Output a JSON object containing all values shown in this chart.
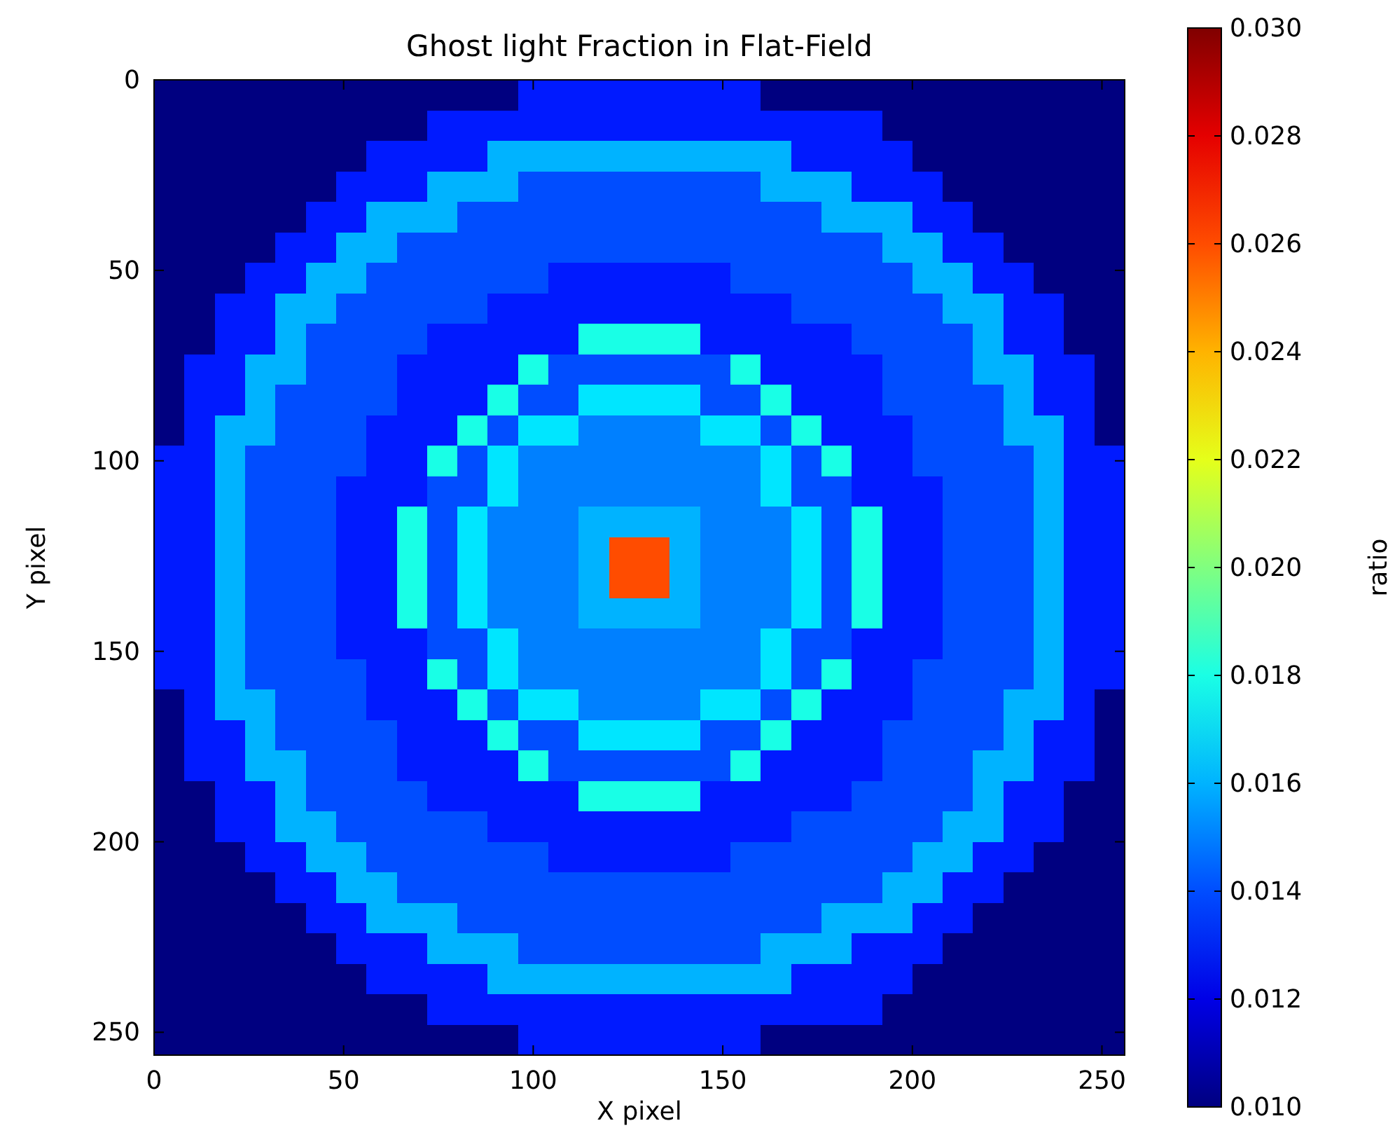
{
  "chart_data": {
    "type": "heatmap",
    "title": "Ghost light Fraction in Flat-Field",
    "xlabel": "X pixel",
    "ylabel": "Y pixel",
    "clabel": "ratio",
    "xlim": [
      0,
      256
    ],
    "ylim": [
      256,
      0
    ],
    "xticks": [
      0,
      50,
      100,
      150,
      200,
      250
    ],
    "yticks": [
      0,
      50,
      100,
      150,
      200,
      250
    ],
    "clim": [
      0.01,
      0.03
    ],
    "cticks": [
      {
        "value": 0.01,
        "label": "0.010"
      },
      {
        "value": 0.012,
        "label": "0.012"
      },
      {
        "value": 0.014,
        "label": "0.014"
      },
      {
        "value": 0.016,
        "label": "0.016"
      },
      {
        "value": 0.018,
        "label": "0.018"
      },
      {
        "value": 0.02,
        "label": "0.020"
      },
      {
        "value": 0.022,
        "label": "0.022"
      },
      {
        "value": 0.024,
        "label": "0.024"
      },
      {
        "value": 0.026,
        "label": "0.026"
      },
      {
        "value": 0.028,
        "label": "0.028"
      },
      {
        "value": 0.03,
        "label": "0.030"
      }
    ],
    "cells": [
      [
        0.01,
        0.01,
        0.01,
        0.01,
        0.01,
        0.01,
        0.01,
        0.01,
        0.01,
        0.01,
        0.01,
        0.01,
        0.013,
        0.013,
        0.013,
        0.013,
        0.013,
        0.013,
        0.013,
        0.013,
        0.01,
        0.01,
        0.01,
        0.01,
        0.01,
        0.01,
        0.01,
        0.01,
        0.01,
        0.01,
        0.01,
        0.01
      ],
      [
        0.01,
        0.01,
        0.01,
        0.01,
        0.01,
        0.01,
        0.01,
        0.01,
        0.01,
        0.013,
        0.013,
        0.013,
        0.013,
        0.013,
        0.013,
        0.013,
        0.013,
        0.013,
        0.013,
        0.013,
        0.013,
        0.013,
        0.013,
        0.013,
        0.01,
        0.01,
        0.01,
        0.01,
        0.01,
        0.01,
        0.01,
        0.01
      ],
      [
        0.01,
        0.01,
        0.01,
        0.01,
        0.01,
        0.01,
        0.01,
        0.013,
        0.013,
        0.013,
        0.013,
        0.016,
        0.016,
        0.016,
        0.016,
        0.016,
        0.016,
        0.016,
        0.016,
        0.016,
        0.016,
        0.013,
        0.013,
        0.013,
        0.013,
        0.01,
        0.01,
        0.01,
        0.01,
        0.01,
        0.01,
        0.01
      ],
      [
        0.01,
        0.01,
        0.01,
        0.01,
        0.01,
        0.01,
        0.013,
        0.013,
        0.013,
        0.016,
        0.016,
        0.016,
        0.014,
        0.014,
        0.014,
        0.014,
        0.014,
        0.014,
        0.014,
        0.014,
        0.016,
        0.016,
        0.016,
        0.013,
        0.013,
        0.013,
        0.01,
        0.01,
        0.01,
        0.01,
        0.01,
        0.01
      ],
      [
        0.01,
        0.01,
        0.01,
        0.01,
        0.01,
        0.013,
        0.013,
        0.016,
        0.016,
        0.016,
        0.014,
        0.014,
        0.014,
        0.014,
        0.014,
        0.014,
        0.014,
        0.014,
        0.014,
        0.014,
        0.014,
        0.014,
        0.016,
        0.016,
        0.016,
        0.013,
        0.013,
        0.01,
        0.01,
        0.01,
        0.01,
        0.01
      ],
      [
        0.01,
        0.01,
        0.01,
        0.01,
        0.013,
        0.013,
        0.016,
        0.016,
        0.014,
        0.014,
        0.014,
        0.014,
        0.014,
        0.014,
        0.014,
        0.014,
        0.014,
        0.014,
        0.014,
        0.014,
        0.014,
        0.014,
        0.014,
        0.014,
        0.016,
        0.016,
        0.013,
        0.013,
        0.01,
        0.01,
        0.01,
        0.01
      ],
      [
        0.01,
        0.01,
        0.01,
        0.013,
        0.013,
        0.016,
        0.016,
        0.014,
        0.014,
        0.014,
        0.014,
        0.014,
        0.014,
        0.013,
        0.013,
        0.013,
        0.013,
        0.013,
        0.013,
        0.014,
        0.014,
        0.014,
        0.014,
        0.014,
        0.014,
        0.016,
        0.016,
        0.013,
        0.013,
        0.01,
        0.01,
        0.01
      ],
      [
        0.01,
        0.01,
        0.013,
        0.013,
        0.016,
        0.016,
        0.014,
        0.014,
        0.014,
        0.014,
        0.014,
        0.013,
        0.013,
        0.013,
        0.013,
        0.013,
        0.013,
        0.013,
        0.013,
        0.013,
        0.013,
        0.014,
        0.014,
        0.014,
        0.014,
        0.014,
        0.016,
        0.016,
        0.013,
        0.013,
        0.01,
        0.01
      ],
      [
        0.01,
        0.01,
        0.013,
        0.013,
        0.016,
        0.014,
        0.014,
        0.014,
        0.014,
        0.013,
        0.013,
        0.013,
        0.013,
        0.013,
        0.018,
        0.018,
        0.018,
        0.018,
        0.013,
        0.013,
        0.013,
        0.013,
        0.013,
        0.014,
        0.014,
        0.014,
        0.014,
        0.016,
        0.013,
        0.013,
        0.01,
        0.01
      ],
      [
        0.01,
        0.013,
        0.013,
        0.016,
        0.016,
        0.014,
        0.014,
        0.014,
        0.013,
        0.013,
        0.013,
        0.013,
        0.018,
        0.014,
        0.014,
        0.014,
        0.014,
        0.014,
        0.014,
        0.018,
        0.013,
        0.013,
        0.013,
        0.013,
        0.014,
        0.014,
        0.014,
        0.016,
        0.016,
        0.013,
        0.013,
        0.01
      ],
      [
        0.01,
        0.013,
        0.013,
        0.016,
        0.014,
        0.014,
        0.014,
        0.014,
        0.013,
        0.013,
        0.013,
        0.018,
        0.014,
        0.014,
        0.017,
        0.017,
        0.017,
        0.017,
        0.014,
        0.014,
        0.018,
        0.013,
        0.013,
        0.013,
        0.014,
        0.014,
        0.014,
        0.014,
        0.016,
        0.013,
        0.013,
        0.01
      ],
      [
        0.01,
        0.013,
        0.016,
        0.016,
        0.014,
        0.014,
        0.014,
        0.013,
        0.013,
        0.013,
        0.018,
        0.014,
        0.017,
        0.017,
        0.015,
        0.015,
        0.015,
        0.015,
        0.017,
        0.017,
        0.014,
        0.018,
        0.013,
        0.013,
        0.013,
        0.014,
        0.014,
        0.014,
        0.016,
        0.016,
        0.013,
        0.01
      ],
      [
        0.013,
        0.013,
        0.016,
        0.014,
        0.014,
        0.014,
        0.014,
        0.013,
        0.013,
        0.018,
        0.014,
        0.017,
        0.015,
        0.015,
        0.015,
        0.015,
        0.015,
        0.015,
        0.015,
        0.015,
        0.017,
        0.014,
        0.018,
        0.013,
        0.013,
        0.014,
        0.014,
        0.014,
        0.014,
        0.016,
        0.013,
        0.013
      ],
      [
        0.013,
        0.013,
        0.016,
        0.014,
        0.014,
        0.014,
        0.013,
        0.013,
        0.013,
        0.014,
        0.014,
        0.017,
        0.015,
        0.015,
        0.015,
        0.015,
        0.015,
        0.015,
        0.015,
        0.015,
        0.017,
        0.014,
        0.014,
        0.013,
        0.013,
        0.013,
        0.014,
        0.014,
        0.014,
        0.016,
        0.013,
        0.013
      ],
      [
        0.013,
        0.013,
        0.016,
        0.014,
        0.014,
        0.014,
        0.013,
        0.013,
        0.018,
        0.014,
        0.017,
        0.015,
        0.015,
        0.015,
        0.016,
        0.016,
        0.016,
        0.016,
        0.015,
        0.015,
        0.015,
        0.017,
        0.014,
        0.018,
        0.013,
        0.013,
        0.014,
        0.014,
        0.014,
        0.016,
        0.013,
        0.013
      ],
      [
        0.013,
        0.013,
        0.016,
        0.014,
        0.014,
        0.014,
        0.013,
        0.013,
        0.018,
        0.014,
        0.017,
        0.015,
        0.015,
        0.015,
        0.016,
        0.026,
        0.026,
        0.016,
        0.015,
        0.015,
        0.015,
        0.017,
        0.014,
        0.018,
        0.013,
        0.013,
        0.014,
        0.014,
        0.014,
        0.016,
        0.013,
        0.013
      ],
      [
        0.013,
        0.013,
        0.016,
        0.014,
        0.014,
        0.014,
        0.013,
        0.013,
        0.018,
        0.014,
        0.017,
        0.015,
        0.015,
        0.015,
        0.016,
        0.026,
        0.026,
        0.016,
        0.015,
        0.015,
        0.015,
        0.017,
        0.014,
        0.018,
        0.013,
        0.013,
        0.014,
        0.014,
        0.014,
        0.016,
        0.013,
        0.013
      ],
      [
        0.013,
        0.013,
        0.016,
        0.014,
        0.014,
        0.014,
        0.013,
        0.013,
        0.018,
        0.014,
        0.017,
        0.015,
        0.015,
        0.015,
        0.016,
        0.016,
        0.016,
        0.016,
        0.015,
        0.015,
        0.015,
        0.017,
        0.014,
        0.018,
        0.013,
        0.013,
        0.014,
        0.014,
        0.014,
        0.016,
        0.013,
        0.013
      ],
      [
        0.013,
        0.013,
        0.016,
        0.014,
        0.014,
        0.014,
        0.013,
        0.013,
        0.013,
        0.014,
        0.014,
        0.017,
        0.015,
        0.015,
        0.015,
        0.015,
        0.015,
        0.015,
        0.015,
        0.015,
        0.017,
        0.014,
        0.014,
        0.013,
        0.013,
        0.013,
        0.014,
        0.014,
        0.014,
        0.016,
        0.013,
        0.013
      ],
      [
        0.013,
        0.013,
        0.016,
        0.014,
        0.014,
        0.014,
        0.014,
        0.013,
        0.013,
        0.018,
        0.014,
        0.017,
        0.015,
        0.015,
        0.015,
        0.015,
        0.015,
        0.015,
        0.015,
        0.015,
        0.017,
        0.014,
        0.018,
        0.013,
        0.013,
        0.014,
        0.014,
        0.014,
        0.014,
        0.016,
        0.013,
        0.013
      ],
      [
        0.01,
        0.013,
        0.016,
        0.016,
        0.014,
        0.014,
        0.014,
        0.013,
        0.013,
        0.013,
        0.018,
        0.014,
        0.017,
        0.017,
        0.015,
        0.015,
        0.015,
        0.015,
        0.017,
        0.017,
        0.014,
        0.018,
        0.013,
        0.013,
        0.013,
        0.014,
        0.014,
        0.014,
        0.016,
        0.016,
        0.013,
        0.01
      ],
      [
        0.01,
        0.013,
        0.013,
        0.016,
        0.014,
        0.014,
        0.014,
        0.014,
        0.013,
        0.013,
        0.013,
        0.018,
        0.014,
        0.014,
        0.017,
        0.017,
        0.017,
        0.017,
        0.014,
        0.014,
        0.018,
        0.013,
        0.013,
        0.013,
        0.014,
        0.014,
        0.014,
        0.014,
        0.016,
        0.013,
        0.013,
        0.01
      ],
      [
        0.01,
        0.013,
        0.013,
        0.016,
        0.016,
        0.014,
        0.014,
        0.014,
        0.013,
        0.013,
        0.013,
        0.013,
        0.018,
        0.014,
        0.014,
        0.014,
        0.014,
        0.014,
        0.014,
        0.018,
        0.013,
        0.013,
        0.013,
        0.013,
        0.014,
        0.014,
        0.014,
        0.016,
        0.016,
        0.013,
        0.013,
        0.01
      ],
      [
        0.01,
        0.01,
        0.013,
        0.013,
        0.016,
        0.014,
        0.014,
        0.014,
        0.014,
        0.013,
        0.013,
        0.013,
        0.013,
        0.013,
        0.018,
        0.018,
        0.018,
        0.018,
        0.013,
        0.013,
        0.013,
        0.013,
        0.013,
        0.014,
        0.014,
        0.014,
        0.014,
        0.016,
        0.013,
        0.013,
        0.01,
        0.01
      ],
      [
        0.01,
        0.01,
        0.013,
        0.013,
        0.016,
        0.016,
        0.014,
        0.014,
        0.014,
        0.014,
        0.014,
        0.013,
        0.013,
        0.013,
        0.013,
        0.013,
        0.013,
        0.013,
        0.013,
        0.013,
        0.013,
        0.014,
        0.014,
        0.014,
        0.014,
        0.014,
        0.016,
        0.016,
        0.013,
        0.013,
        0.01,
        0.01
      ],
      [
        0.01,
        0.01,
        0.01,
        0.013,
        0.013,
        0.016,
        0.016,
        0.014,
        0.014,
        0.014,
        0.014,
        0.014,
        0.014,
        0.013,
        0.013,
        0.013,
        0.013,
        0.013,
        0.013,
        0.014,
        0.014,
        0.014,
        0.014,
        0.014,
        0.014,
        0.016,
        0.016,
        0.013,
        0.013,
        0.01,
        0.01,
        0.01
      ],
      [
        0.01,
        0.01,
        0.01,
        0.01,
        0.013,
        0.013,
        0.016,
        0.016,
        0.014,
        0.014,
        0.014,
        0.014,
        0.014,
        0.014,
        0.014,
        0.014,
        0.014,
        0.014,
        0.014,
        0.014,
        0.014,
        0.014,
        0.014,
        0.014,
        0.016,
        0.016,
        0.013,
        0.013,
        0.01,
        0.01,
        0.01,
        0.01
      ],
      [
        0.01,
        0.01,
        0.01,
        0.01,
        0.01,
        0.013,
        0.013,
        0.016,
        0.016,
        0.016,
        0.014,
        0.014,
        0.014,
        0.014,
        0.014,
        0.014,
        0.014,
        0.014,
        0.014,
        0.014,
        0.014,
        0.014,
        0.016,
        0.016,
        0.016,
        0.013,
        0.013,
        0.01,
        0.01,
        0.01,
        0.01,
        0.01
      ],
      [
        0.01,
        0.01,
        0.01,
        0.01,
        0.01,
        0.01,
        0.013,
        0.013,
        0.013,
        0.016,
        0.016,
        0.016,
        0.014,
        0.014,
        0.014,
        0.014,
        0.014,
        0.014,
        0.014,
        0.014,
        0.016,
        0.016,
        0.016,
        0.013,
        0.013,
        0.013,
        0.01,
        0.01,
        0.01,
        0.01,
        0.01,
        0.01
      ],
      [
        0.01,
        0.01,
        0.01,
        0.01,
        0.01,
        0.01,
        0.01,
        0.013,
        0.013,
        0.013,
        0.013,
        0.016,
        0.016,
        0.016,
        0.016,
        0.016,
        0.016,
        0.016,
        0.016,
        0.016,
        0.016,
        0.013,
        0.013,
        0.013,
        0.013,
        0.01,
        0.01,
        0.01,
        0.01,
        0.01,
        0.01,
        0.01
      ],
      [
        0.01,
        0.01,
        0.01,
        0.01,
        0.01,
        0.01,
        0.01,
        0.01,
        0.01,
        0.013,
        0.013,
        0.013,
        0.013,
        0.013,
        0.013,
        0.013,
        0.013,
        0.013,
        0.013,
        0.013,
        0.013,
        0.013,
        0.013,
        0.013,
        0.01,
        0.01,
        0.01,
        0.01,
        0.01,
        0.01,
        0.01,
        0.01
      ],
      [
        0.01,
        0.01,
        0.01,
        0.01,
        0.01,
        0.01,
        0.01,
        0.01,
        0.01,
        0.01,
        0.01,
        0.01,
        0.013,
        0.013,
        0.013,
        0.013,
        0.013,
        0.013,
        0.013,
        0.013,
        0.01,
        0.01,
        0.01,
        0.01,
        0.01,
        0.01,
        0.01,
        0.01,
        0.01,
        0.01,
        0.01,
        0.01
      ]
    ]
  }
}
